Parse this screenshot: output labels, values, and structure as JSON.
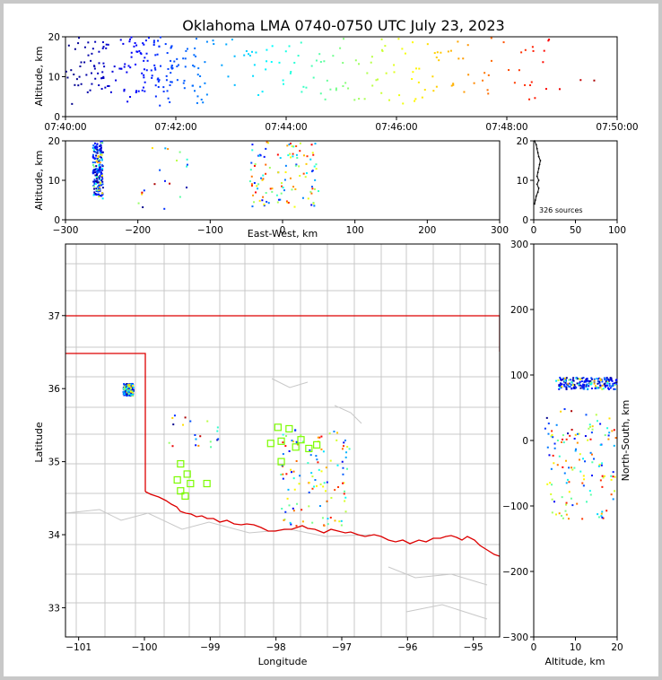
{
  "title": "Oklahoma LMA 0740-0750 UTC July 23, 2023",
  "colors": {
    "frame": "#c8c8c8",
    "state_border": "#dd0000",
    "county": "#c8c8c8",
    "station": "#7cfc00"
  },
  "chart_data": [
    {
      "id": "time-altitude",
      "type": "scatter",
      "ylabel": "Altitude, km",
      "xticks": [
        "07:40:00",
        "07:42:00",
        "07:44:00",
        "07:46:00",
        "07:48:00",
        "07:50:00"
      ],
      "xlim_minutes": [
        0,
        10
      ],
      "ylim": [
        0,
        20
      ],
      "yticks": [
        "0",
        "10",
        "20"
      ],
      "color_by": "time"
    },
    {
      "id": "ew-altitude",
      "type": "scatter",
      "xlabel": "East-West, km",
      "ylabel": "Altitude, km",
      "xlim": [
        -300,
        300
      ],
      "ylim": [
        0,
        20
      ],
      "xticks": [
        "−300",
        "−200",
        "−100",
        "0",
        "100",
        "200",
        "300"
      ],
      "yticks": [
        "0",
        "10",
        "20"
      ]
    },
    {
      "id": "altitude-histogram",
      "type": "line",
      "xlim": [
        0,
        100
      ],
      "ylim": [
        0,
        20
      ],
      "xticks": [
        "0",
        "50",
        "100"
      ],
      "yticks": [
        "0",
        "10",
        "20"
      ],
      "annotation": "326 sources",
      "profile": [
        {
          "alt": 4,
          "count": 1
        },
        {
          "alt": 5,
          "count": 2
        },
        {
          "alt": 6,
          "count": 3
        },
        {
          "alt": 7,
          "count": 5
        },
        {
          "alt": 8,
          "count": 6
        },
        {
          "alt": 9,
          "count": 4
        },
        {
          "alt": 10,
          "count": 6
        },
        {
          "alt": 11,
          "count": 4
        },
        {
          "alt": 12,
          "count": 5
        },
        {
          "alt": 13,
          "count": 6
        },
        {
          "alt": 14,
          "count": 7
        },
        {
          "alt": 15,
          "count": 8
        },
        {
          "alt": 16,
          "count": 6
        },
        {
          "alt": 17,
          "count": 5
        },
        {
          "alt": 18,
          "count": 4
        },
        {
          "alt": 19,
          "count": 3
        },
        {
          "alt": 20,
          "count": 1
        }
      ]
    },
    {
      "id": "plan-view-map",
      "type": "scatter",
      "xlabel": "Longitude",
      "ylabel": "Latitude",
      "xlim": [
        -101.2,
        -94.6
      ],
      "ylim": [
        32.6,
        37.98
      ],
      "xticks": [
        "−101",
        "−100",
        "−99",
        "−98",
        "−97",
        "−96",
        "−95"
      ],
      "yticks": [
        "33",
        "34",
        "35",
        "36",
        "37"
      ],
      "stations": [
        {
          "lon": -99.5,
          "lat": 34.75
        },
        {
          "lon": -99.45,
          "lat": 34.97
        },
        {
          "lon": -99.35,
          "lat": 34.83
        },
        {
          "lon": -99.45,
          "lat": 34.6
        },
        {
          "lon": -99.38,
          "lat": 34.53
        },
        {
          "lon": -99.3,
          "lat": 34.7
        },
        {
          "lon": -99.05,
          "lat": 34.7
        },
        {
          "lon": -98.08,
          "lat": 35.25
        },
        {
          "lon": -97.97,
          "lat": 35.47
        },
        {
          "lon": -97.92,
          "lat": 35.28
        },
        {
          "lon": -97.8,
          "lat": 35.45
        },
        {
          "lon": -97.7,
          "lat": 35.2
        },
        {
          "lon": -97.62,
          "lat": 35.3
        },
        {
          "lon": -97.5,
          "lat": 35.18
        },
        {
          "lon": -97.38,
          "lat": 35.23
        },
        {
          "lon": -97.92,
          "lat": 35.0
        }
      ]
    },
    {
      "id": "altitude-ns",
      "type": "scatter",
      "xlabel": "Altitude, km",
      "ylabel": "North-South, km",
      "xlim": [
        0,
        20
      ],
      "ylim": [
        -300,
        300
      ],
      "xticks": [
        "0",
        "10",
        "20"
      ],
      "yticks": [
        "−300",
        "−200",
        "−100",
        "0",
        "100",
        "200",
        "300"
      ]
    }
  ],
  "sources": {
    "count": 326,
    "clusters": [
      {
        "t": [
          0.0,
          2.4
        ],
        "alt": [
          6,
          20
        ],
        "ew": [
          -262,
          -248
        ],
        "ns": [
          78,
          96
        ],
        "n": 150
      },
      {
        "t": [
          2.4,
          7.3
        ],
        "alt": [
          5,
          20
        ],
        "ew": [
          -262,
          -248
        ],
        "ns": [
          78,
          96
        ],
        "n": 40
      },
      {
        "t": [
          0.0,
          9.8
        ],
        "alt": [
          2,
          20
        ],
        "ew": [
          -200,
          -120
        ],
        "ns": [
          0,
          60
        ],
        "n": 20
      },
      {
        "t": [
          1.0,
          9.0
        ],
        "alt": [
          3,
          20
        ],
        "ew": [
          -45,
          50
        ],
        "ns": [
          -120,
          30
        ],
        "n": 116
      }
    ]
  }
}
